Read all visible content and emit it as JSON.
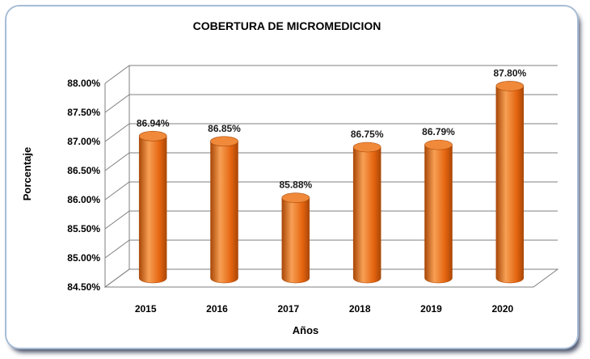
{
  "chart_data": {
    "type": "bar",
    "title": "COBERTURA DE MICROMEDICION",
    "xlabel": "Años",
    "ylabel": "Porcentaje",
    "categories": [
      "2015",
      "2016",
      "2017",
      "2018",
      "2019",
      "2020"
    ],
    "values": [
      86.94,
      86.85,
      85.88,
      86.75,
      86.79,
      87.8
    ],
    "data_labels": [
      "86.94%",
      "86.85%",
      "85.88%",
      "86.75%",
      "86.79%",
      "87.80%"
    ],
    "yticks": [
      "84.50%",
      "85.00%",
      "85.50%",
      "86.00%",
      "86.50%",
      "87.00%",
      "87.50%",
      "88.00%"
    ],
    "ylim": [
      84.5,
      88.0
    ],
    "grid": true,
    "legend": "none",
    "bar_style": "3d-cylinder",
    "colors": {
      "bar_light": "#f7a055",
      "bar_main": "#e4640f",
      "bar_dark": "#a94707",
      "bar_top": "#f08a3a"
    }
  }
}
